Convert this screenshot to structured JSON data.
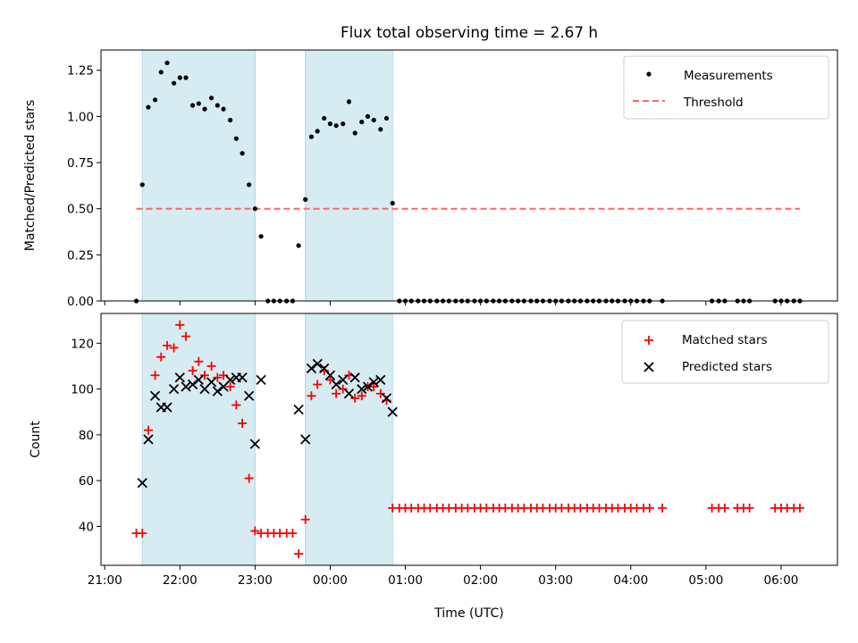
{
  "chart_data": {
    "title": "Flux total observing time = 2.67 h",
    "xlabel": "Time (UTC)",
    "x_unit": "hours since 21:00 UTC",
    "x_range": [
      -0.05,
      9.75
    ],
    "x_ticks": [
      {
        "h": 0,
        "label": "21:00"
      },
      {
        "h": 1,
        "label": "22:00"
      },
      {
        "h": 2,
        "label": "23:00"
      },
      {
        "h": 3,
        "label": "00:00"
      },
      {
        "h": 4,
        "label": "01:00"
      },
      {
        "h": 5,
        "label": "02:00"
      },
      {
        "h": 6,
        "label": "03:00"
      },
      {
        "h": 7,
        "label": "04:00"
      },
      {
        "h": 8,
        "label": "05:00"
      },
      {
        "h": 9,
        "label": "06:00"
      }
    ],
    "observing_windows": [
      [
        0.5,
        2.0
      ],
      [
        2.67,
        3.83
      ]
    ],
    "window_color": "#add8e6",
    "top": {
      "type": "scatter",
      "ylabel": "Matched/Predicted stars",
      "ylim": [
        0,
        1.36
      ],
      "y_ticks": [
        "0.00",
        "0.25",
        "0.50",
        "0.75",
        "1.00",
        "1.25"
      ],
      "threshold": {
        "value": 0.5,
        "x_start": 0.42,
        "x_end": 9.25,
        "color": "#ff6666"
      },
      "legend": {
        "placement": "upper right",
        "entries": [
          "Measurements",
          "Threshold"
        ]
      },
      "measurements": [
        [
          0.42,
          0.0
        ],
        [
          0.5,
          0.63
        ],
        [
          0.58,
          1.05
        ],
        [
          0.67,
          1.09
        ],
        [
          0.75,
          1.24
        ],
        [
          0.83,
          1.29
        ],
        [
          0.92,
          1.18
        ],
        [
          1.0,
          1.21
        ],
        [
          1.08,
          1.21
        ],
        [
          1.17,
          1.06
        ],
        [
          1.25,
          1.07
        ],
        [
          1.33,
          1.04
        ],
        [
          1.42,
          1.1
        ],
        [
          1.5,
          1.06
        ],
        [
          1.58,
          1.04
        ],
        [
          1.67,
          0.98
        ],
        [
          1.75,
          0.88
        ],
        [
          1.83,
          0.8
        ],
        [
          1.92,
          0.63
        ],
        [
          2.0,
          0.5
        ],
        [
          2.08,
          0.35
        ],
        [
          2.17,
          0.0
        ],
        [
          2.25,
          0.0
        ],
        [
          2.33,
          0.0
        ],
        [
          2.42,
          0.0
        ],
        [
          2.5,
          0.0
        ],
        [
          2.58,
          0.3
        ],
        [
          2.67,
          0.55
        ],
        [
          2.75,
          0.89
        ],
        [
          2.83,
          0.92
        ],
        [
          2.92,
          0.99
        ],
        [
          3.0,
          0.96
        ],
        [
          3.08,
          0.95
        ],
        [
          3.17,
          0.96
        ],
        [
          3.25,
          1.08
        ],
        [
          3.33,
          0.91
        ],
        [
          3.42,
          0.97
        ],
        [
          3.5,
          1.0
        ],
        [
          3.58,
          0.98
        ],
        [
          3.67,
          0.93
        ],
        [
          3.75,
          0.99
        ],
        [
          3.83,
          0.53
        ],
        [
          3.92,
          0.0
        ],
        [
          4.0,
          0.0
        ],
        [
          4.08,
          0.0
        ],
        [
          4.17,
          0.0
        ],
        [
          4.25,
          0.0
        ],
        [
          4.33,
          0.0
        ],
        [
          4.42,
          0.0
        ],
        [
          4.5,
          0.0
        ],
        [
          4.58,
          0.0
        ],
        [
          4.67,
          0.0
        ],
        [
          4.75,
          0.0
        ],
        [
          4.83,
          0.0
        ],
        [
          4.92,
          0.0
        ],
        [
          5.0,
          0.0
        ],
        [
          5.08,
          0.0
        ],
        [
          5.17,
          0.0
        ],
        [
          5.25,
          0.0
        ],
        [
          5.33,
          0.0
        ],
        [
          5.42,
          0.0
        ],
        [
          5.5,
          0.0
        ],
        [
          5.58,
          0.0
        ],
        [
          5.67,
          0.0
        ],
        [
          5.75,
          0.0
        ],
        [
          5.83,
          0.0
        ],
        [
          5.92,
          0.0
        ],
        [
          6.0,
          0.0
        ],
        [
          6.08,
          0.0
        ],
        [
          6.17,
          0.0
        ],
        [
          6.25,
          0.0
        ],
        [
          6.33,
          0.0
        ],
        [
          6.42,
          0.0
        ],
        [
          6.5,
          0.0
        ],
        [
          6.58,
          0.0
        ],
        [
          6.67,
          0.0
        ],
        [
          6.75,
          0.0
        ],
        [
          6.83,
          0.0
        ],
        [
          6.92,
          0.0
        ],
        [
          7.0,
          0.0
        ],
        [
          7.08,
          0.0
        ],
        [
          7.17,
          0.0
        ],
        [
          7.25,
          0.0
        ],
        [
          7.42,
          0.0
        ],
        [
          8.08,
          0.0
        ],
        [
          8.17,
          0.0
        ],
        [
          8.25,
          0.0
        ],
        [
          8.42,
          0.0
        ],
        [
          8.5,
          0.0
        ],
        [
          8.58,
          0.0
        ],
        [
          8.92,
          0.0
        ],
        [
          9.0,
          0.0
        ],
        [
          9.08,
          0.0
        ],
        [
          9.17,
          0.0
        ],
        [
          9.25,
          0.0
        ]
      ]
    },
    "bottom": {
      "type": "scatter",
      "ylabel": "Count",
      "ylim": [
        23,
        133
      ],
      "y_ticks": [
        40,
        60,
        80,
        100,
        120
      ],
      "legend": {
        "placement": "upper right",
        "entries": [
          "Matched stars",
          "Predicted stars"
        ]
      },
      "matched_stars": [
        [
          0.42,
          37
        ],
        [
          0.5,
          37
        ],
        [
          0.58,
          82
        ],
        [
          0.67,
          106
        ],
        [
          0.75,
          114
        ],
        [
          0.83,
          119
        ],
        [
          0.92,
          118
        ],
        [
          1.0,
          128
        ],
        [
          1.08,
          123
        ],
        [
          1.17,
          108
        ],
        [
          1.25,
          112
        ],
        [
          1.33,
          106
        ],
        [
          1.42,
          110
        ],
        [
          1.5,
          105
        ],
        [
          1.58,
          106
        ],
        [
          1.67,
          101
        ],
        [
          1.75,
          93
        ],
        [
          1.83,
          85
        ],
        [
          1.92,
          61
        ],
        [
          2.0,
          38
        ],
        [
          2.08,
          37
        ],
        [
          2.17,
          37
        ],
        [
          2.25,
          37
        ],
        [
          2.33,
          37
        ],
        [
          2.42,
          37
        ],
        [
          2.5,
          37
        ],
        [
          2.58,
          28
        ],
        [
          2.67,
          43
        ],
        [
          2.75,
          97
        ],
        [
          2.83,
          102
        ],
        [
          2.92,
          108
        ],
        [
          3.0,
          104
        ],
        [
          3.08,
          98
        ],
        [
          3.17,
          100
        ],
        [
          3.25,
          106
        ],
        [
          3.33,
          96
        ],
        [
          3.42,
          97
        ],
        [
          3.5,
          101
        ],
        [
          3.58,
          101
        ],
        [
          3.67,
          98
        ],
        [
          3.75,
          95
        ],
        [
          3.83,
          48
        ],
        [
          3.92,
          48
        ],
        [
          4.0,
          48
        ],
        [
          4.08,
          48
        ],
        [
          4.17,
          48
        ],
        [
          4.25,
          48
        ],
        [
          4.33,
          48
        ],
        [
          4.42,
          48
        ],
        [
          4.5,
          48
        ],
        [
          4.58,
          48
        ],
        [
          4.67,
          48
        ],
        [
          4.75,
          48
        ],
        [
          4.83,
          48
        ],
        [
          4.92,
          48
        ],
        [
          5.0,
          48
        ],
        [
          5.08,
          48
        ],
        [
          5.17,
          48
        ],
        [
          5.25,
          48
        ],
        [
          5.33,
          48
        ],
        [
          5.42,
          48
        ],
        [
          5.5,
          48
        ],
        [
          5.58,
          48
        ],
        [
          5.67,
          48
        ],
        [
          5.75,
          48
        ],
        [
          5.83,
          48
        ],
        [
          5.92,
          48
        ],
        [
          6.0,
          48
        ],
        [
          6.08,
          48
        ],
        [
          6.17,
          48
        ],
        [
          6.25,
          48
        ],
        [
          6.33,
          48
        ],
        [
          6.42,
          48
        ],
        [
          6.5,
          48
        ],
        [
          6.58,
          48
        ],
        [
          6.67,
          48
        ],
        [
          6.75,
          48
        ],
        [
          6.83,
          48
        ],
        [
          6.92,
          48
        ],
        [
          7.0,
          48
        ],
        [
          7.08,
          48
        ],
        [
          7.17,
          48
        ],
        [
          7.25,
          48
        ],
        [
          7.42,
          48
        ],
        [
          8.08,
          48
        ],
        [
          8.17,
          48
        ],
        [
          8.25,
          48
        ],
        [
          8.42,
          48
        ],
        [
          8.5,
          48
        ],
        [
          8.58,
          48
        ],
        [
          8.92,
          48
        ],
        [
          9.0,
          48
        ],
        [
          9.08,
          48
        ],
        [
          9.17,
          48
        ],
        [
          9.25,
          48
        ]
      ],
      "predicted_stars": [
        [
          0.5,
          59
        ],
        [
          0.58,
          78
        ],
        [
          0.67,
          97
        ],
        [
          0.75,
          92
        ],
        [
          0.83,
          92
        ],
        [
          0.92,
          100
        ],
        [
          1.0,
          105
        ],
        [
          1.08,
          101
        ],
        [
          1.17,
          102
        ],
        [
          1.25,
          104
        ],
        [
          1.33,
          100
        ],
        [
          1.42,
          103
        ],
        [
          1.5,
          99
        ],
        [
          1.58,
          101
        ],
        [
          1.67,
          104
        ],
        [
          1.75,
          105
        ],
        [
          1.83,
          105
        ],
        [
          1.92,
          97
        ],
        [
          2.0,
          76
        ],
        [
          2.08,
          104
        ],
        [
          2.58,
          91
        ],
        [
          2.67,
          78
        ],
        [
          2.75,
          109
        ],
        [
          2.83,
          111
        ],
        [
          2.92,
          109
        ],
        [
          3.0,
          106
        ],
        [
          3.08,
          102
        ],
        [
          3.17,
          104
        ],
        [
          3.25,
          98
        ],
        [
          3.33,
          105
        ],
        [
          3.42,
          100
        ],
        [
          3.5,
          101
        ],
        [
          3.58,
          103
        ],
        [
          3.67,
          104
        ],
        [
          3.75,
          96
        ],
        [
          3.83,
          90
        ]
      ]
    }
  }
}
